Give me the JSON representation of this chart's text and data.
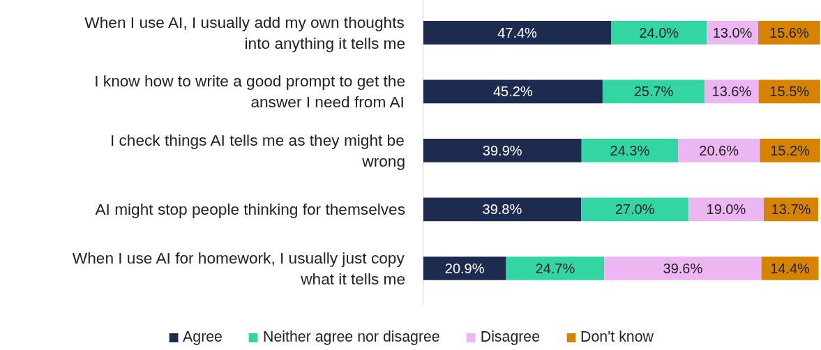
{
  "chart_data": {
    "type": "bar",
    "orientation": "horizontal",
    "stacked": true,
    "grid": false,
    "legend": "bottom",
    "categories": [
      "When I use AI, I usually add my own thoughts into anything it tells me",
      "I know how to write a good prompt to get the answer I need from AI",
      "I check things AI tells me as they might be wrong",
      "AI might stop people thinking for themselves",
      "When I use AI for homework, I usually just copy what it tells me"
    ],
    "series": [
      {
        "name": "Agree",
        "color": "#1e2b50",
        "values": [
          47.4,
          45.2,
          39.9,
          39.8,
          20.9
        ],
        "value_labels": [
          "47.4%",
          "45.2%",
          "39.9%",
          "39.8%",
          "20.9%"
        ]
      },
      {
        "name": "Neither agree nor disagree",
        "color": "#33d6a3",
        "values": [
          24.0,
          25.7,
          24.3,
          27.0,
          24.7
        ],
        "value_labels": [
          "24.0%",
          "25.7%",
          "24.3%",
          "27.0%",
          "24.7%"
        ]
      },
      {
        "name": "Disagree",
        "color": "#ecb6f2",
        "values": [
          13.0,
          13.6,
          20.6,
          19.0,
          39.6
        ],
        "value_labels": [
          "13.0%",
          "13.6%",
          "20.6%",
          "19.0%",
          "39.6%"
        ]
      },
      {
        "name": "Don't know",
        "color": "#d68400",
        "values": [
          15.6,
          15.5,
          15.2,
          13.7,
          14.4
        ],
        "value_labels": [
          "15.6%",
          "15.5%",
          "15.2%",
          "13.7%",
          "14.4%"
        ]
      }
    ]
  }
}
